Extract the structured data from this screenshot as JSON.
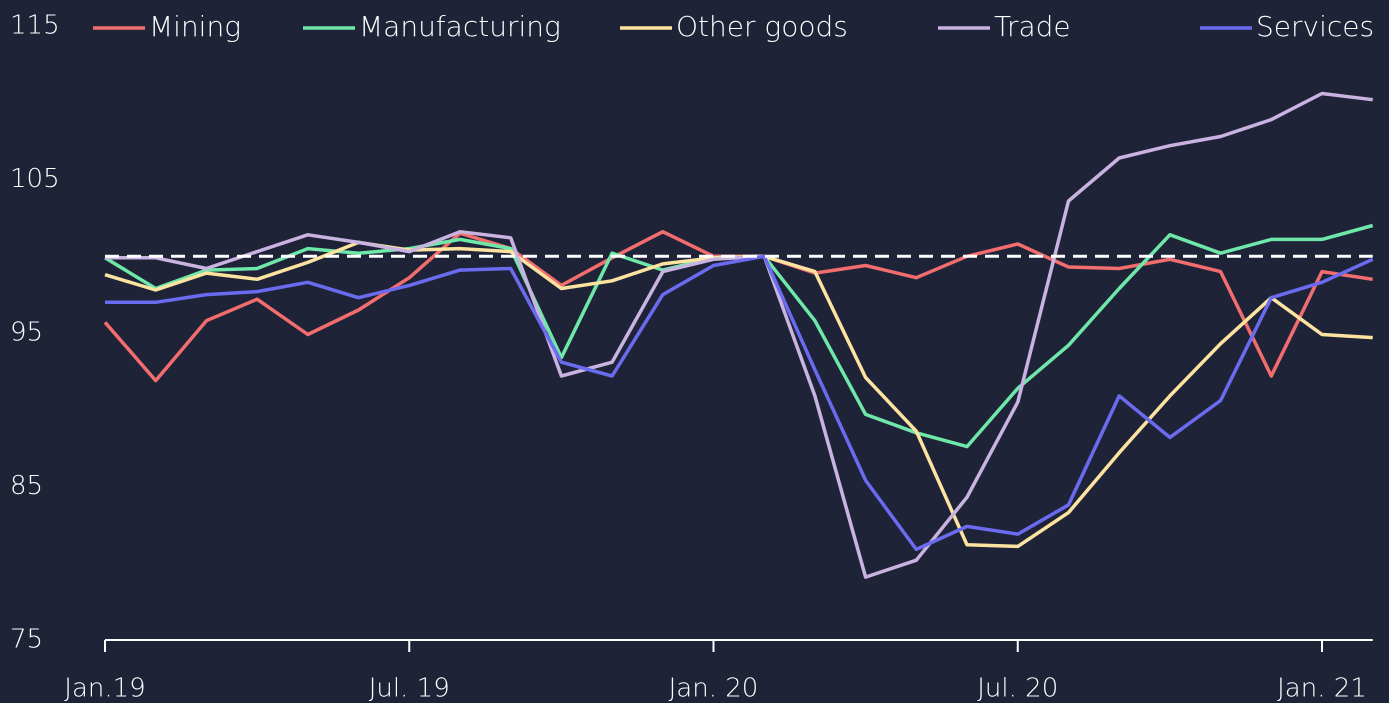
{
  "chart_data": {
    "type": "line",
    "categories": [
      "Jan.19",
      null,
      null,
      null,
      null,
      null,
      "Jul. 19",
      null,
      null,
      null,
      null,
      null,
      "Jan. 20",
      null,
      null,
      null,
      null,
      null,
      "Jul. 20",
      null,
      null,
      null,
      null,
      null,
      "Jan. 21",
      null
    ],
    "series": [
      {
        "name": "Mining",
        "color": "#f26d6d",
        "values": [
          95.7,
          91.9,
          95.8,
          97.2,
          94.9,
          96.5,
          98.6,
          101.5,
          100.5,
          98.1,
          99.9,
          101.6,
          100,
          100,
          98.9,
          99.4,
          98.6,
          100,
          100.8,
          99.3,
          99.2,
          99.8,
          99.0,
          92.2,
          99.0,
          98.5
        ]
      },
      {
        "name": "Manufacturing",
        "color": "#6ee7a8",
        "values": [
          99.9,
          97.9,
          99.1,
          99.2,
          100.5,
          100.2,
          100.5,
          101.1,
          100.5,
          93.4,
          100.2,
          99.1,
          99.9,
          100,
          95.8,
          89.7,
          88.5,
          87.6,
          91.4,
          94.2,
          97.9,
          101.4,
          100.2,
          101.1,
          101.1,
          102.0
        ]
      },
      {
        "name": "Other goods",
        "color": "#fde3a0",
        "values": [
          98.8,
          97.8,
          98.9,
          98.5,
          99.6,
          100.9,
          100.4,
          100.5,
          100.3,
          97.9,
          98.4,
          99.5,
          99.9,
          100,
          99.0,
          92.1,
          88.6,
          81.2,
          81.1,
          83.3,
          87.2,
          90.9,
          94.3,
          97.3,
          94.9,
          94.7
        ]
      },
      {
        "name": "Trade",
        "color": "#c9b3e0",
        "values": [
          99.9,
          99.9,
          99.2,
          100.3,
          101.4,
          100.9,
          100.3,
          101.6,
          101.2,
          92.2,
          93.1,
          99.0,
          99.8,
          100,
          90.9,
          79.1,
          80.2,
          84.3,
          90.5,
          103.6,
          106.4,
          107.2,
          107.8,
          108.9,
          110.6,
          110.2
        ]
      },
      {
        "name": "Services",
        "color": "#6b6bf0",
        "values": [
          97.0,
          97.0,
          97.5,
          97.7,
          98.3,
          97.3,
          98.1,
          99.1,
          99.2,
          93.1,
          92.2,
          97.5,
          99.4,
          100,
          92.6,
          85.4,
          80.9,
          82.4,
          81.9,
          83.8,
          90.9,
          88.2,
          90.6,
          97.3,
          98.3,
          99.8
        ]
      }
    ],
    "reference_line": 100,
    "ylim": [
      75,
      115
    ],
    "yticks": [
      75,
      85,
      95,
      105,
      115
    ],
    "grid": false,
    "legend": "top"
  }
}
